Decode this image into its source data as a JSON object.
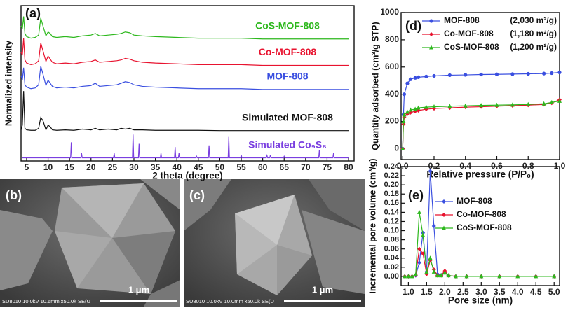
{
  "chart_data": [
    {
      "type": "line",
      "panel_label": "(a)",
      "xlabel": "2 theta (degree)",
      "ylabel": "Normalized intensity",
      "xlim": [
        3.7,
        81.3
      ],
      "ylim": [
        0,
        10
      ],
      "xticks": [
        5,
        10,
        15,
        20,
        25,
        30,
        35,
        40,
        45,
        50,
        55,
        60,
        65,
        70,
        75,
        80
      ],
      "series": [
        {
          "name": "CoS-MOF-808",
          "color": "#2db81d",
          "x": [
            3.7,
            4.0,
            4.3,
            4.6,
            5.0,
            6.0,
            7.0,
            7.8,
            8.3,
            8.8,
            9.5,
            10.0,
            10.5,
            11.0,
            12,
            14,
            16,
            18,
            20,
            21,
            22,
            24,
            26,
            27,
            28,
            29,
            30,
            32,
            35,
            40,
            45,
            50,
            55,
            60,
            65,
            70,
            75,
            80
          ],
          "values": [
            8.7,
            8.5,
            9.3,
            8.2,
            8.0,
            7.9,
            7.95,
            8.1,
            9.2,
            8.7,
            8.05,
            8.3,
            8.2,
            8.0,
            7.95,
            8.0,
            7.95,
            8.05,
            8.1,
            8.2,
            8.05,
            8.1,
            8.15,
            8.2,
            8.3,
            8.25,
            8.1,
            8.05,
            8.0,
            7.95,
            7.9,
            7.9,
            7.9,
            7.85,
            7.85,
            7.85,
            7.85,
            7.85
          ]
        },
        {
          "name": "Co-MOF-808",
          "color": "#e8132f",
          "x": [
            3.7,
            4.0,
            4.3,
            4.6,
            5.0,
            6.0,
            7.0,
            7.8,
            8.3,
            8.8,
            9.5,
            10.0,
            10.5,
            11.0,
            12,
            14,
            16,
            18,
            20,
            21,
            22,
            24,
            26,
            27,
            28,
            29,
            30,
            32,
            35,
            40,
            45,
            50,
            55,
            60,
            65,
            70,
            75,
            80
          ],
          "values": [
            7.0,
            6.8,
            7.9,
            6.5,
            6.3,
            6.2,
            6.25,
            6.45,
            7.6,
            7.1,
            6.4,
            6.75,
            6.55,
            6.35,
            6.25,
            6.3,
            6.25,
            6.35,
            6.4,
            6.5,
            6.35,
            6.4,
            6.45,
            6.5,
            6.6,
            6.55,
            6.45,
            6.35,
            6.3,
            6.25,
            6.2,
            6.2,
            6.2,
            6.15,
            6.15,
            6.15,
            6.15,
            6.15
          ]
        },
        {
          "name": "MOF-808",
          "color": "#3a4fe0",
          "x": [
            3.7,
            4.0,
            4.3,
            4.6,
            5.0,
            6.0,
            7.0,
            7.8,
            8.3,
            8.8,
            9.5,
            10.0,
            10.5,
            11.0,
            12,
            14,
            16,
            18,
            20,
            21,
            22,
            24,
            26,
            27,
            28,
            29,
            30,
            32,
            35,
            40,
            45,
            50,
            55,
            60,
            65,
            70,
            75,
            80
          ],
          "values": [
            5.5,
            5.2,
            6.0,
            4.9,
            4.75,
            4.65,
            4.7,
            4.9,
            6.1,
            5.6,
            4.85,
            5.2,
            5.0,
            4.8,
            4.7,
            4.75,
            4.7,
            4.8,
            4.85,
            5.0,
            4.8,
            4.85,
            4.9,
            5.0,
            5.1,
            5.05,
            4.9,
            4.8,
            4.75,
            4.7,
            4.65,
            4.65,
            4.65,
            4.6,
            4.6,
            4.6,
            4.6,
            4.6
          ]
        },
        {
          "name": "Simulated MOF-808",
          "color": "#111111",
          "x": [
            3.7,
            4.0,
            4.3,
            4.6,
            5.0,
            6.0,
            7.0,
            7.8,
            8.3,
            8.8,
            9.5,
            10.0,
            10.5,
            11.0,
            12,
            14,
            16,
            18,
            20,
            21,
            22,
            24,
            26,
            27,
            28,
            29,
            30,
            32,
            35,
            40,
            45,
            50,
            55,
            60,
            65,
            70,
            75,
            80
          ],
          "values": [
            2.0,
            2.3,
            4.5,
            2.1,
            2.0,
            1.97,
            1.97,
            2.1,
            2.8,
            2.6,
            2.0,
            2.3,
            2.2,
            2.0,
            1.97,
            2.0,
            1.97,
            2.05,
            2.0,
            2.1,
            2.0,
            2.05,
            2.0,
            2.1,
            2.05,
            2.1,
            2.0,
            2.0,
            1.97,
            1.97,
            1.97,
            1.95,
            1.95,
            1.95,
            1.95,
            1.95,
            1.95,
            1.95
          ]
        },
        {
          "name": "Simulated Co₉S₈",
          "color": "#7a3fe0",
          "x": [
            4,
            15.25,
            15.4,
            15.55,
            17.65,
            17.8,
            17.95,
            25.25,
            25.4,
            25.55,
            29.65,
            29.8,
            29.95,
            31.05,
            31.2,
            31.35,
            36.15,
            36.3,
            36.45,
            39.45,
            39.6,
            39.75,
            40.35,
            40.5,
            40.65,
            44.45,
            44.6,
            44.75,
            47.35,
            47.5,
            47.65,
            51.95,
            52.1,
            52.25,
            54.85,
            55.0,
            55.15,
            60.85,
            61.0,
            61.15,
            61.65,
            61.8,
            61.95,
            64.85,
            65.0,
            65.15,
            73.05,
            73.2,
            73.35,
            76.35,
            76.5,
            76.65,
            80
          ],
          "values": [
            0.2,
            0.2,
            1.2,
            0.2,
            0.2,
            0.5,
            0.2,
            0.2,
            0.5,
            0.2,
            0.2,
            1.7,
            0.2,
            0.2,
            1.1,
            0.2,
            0.2,
            0.5,
            0.2,
            0.2,
            0.9,
            0.2,
            0.2,
            0.5,
            0.2,
            0.2,
            0.3,
            0.2,
            0.2,
            1.0,
            0.2,
            0.2,
            1.55,
            0.2,
            0.2,
            0.4,
            0.2,
            0.2,
            0.35,
            0.2,
            0.2,
            0.4,
            0.2,
            0.2,
            0.3,
            0.2,
            0.2,
            0.7,
            0.2,
            0.2,
            0.5,
            0.2,
            0.2
          ]
        }
      ]
    },
    {
      "type": "line",
      "panel_label": "(d)",
      "xlabel": "Relative pressure (P/P₀)",
      "ylabel": "Quantity adsorbed (cm³/g STP)",
      "xlim": [
        -0.01,
        1.0
      ],
      "ylim": [
        -80,
        1000
      ],
      "xticks": [
        {
          "value": 0,
          "label": "0.0"
        },
        0.2,
        0.4,
        0.6,
        0.8,
        {
          "value": 1,
          "label": "1.0"
        }
      ],
      "yticks": [
        0,
        200,
        400,
        600,
        800,
        1000
      ],
      "legend": "upper right",
      "series": [
        {
          "name": "MOF-808",
          "note": "(2,030 m²/g)",
          "color": "#3a4fe0",
          "marker": "circle",
          "x": [
            0,
            0.005,
            0.01,
            0.03,
            0.05,
            0.08,
            0.1,
            0.15,
            0.2,
            0.3,
            0.4,
            0.5,
            0.6,
            0.7,
            0.8,
            0.9,
            0.95,
            1.0
          ],
          "values": [
            0,
            250,
            400,
            480,
            510,
            520,
            525,
            530,
            535,
            540,
            542,
            545,
            546,
            548,
            550,
            552,
            555,
            560
          ]
        },
        {
          "name": "Co-MOF-808",
          "note": "(1,180 m²/g)",
          "color": "#e8132f",
          "marker": "diamond",
          "x": [
            0,
            0.005,
            0.01,
            0.03,
            0.05,
            0.08,
            0.1,
            0.15,
            0.2,
            0.3,
            0.4,
            0.5,
            0.6,
            0.7,
            0.8,
            0.9,
            0.95,
            1.0
          ],
          "values": [
            0,
            180,
            230,
            255,
            265,
            275,
            280,
            290,
            295,
            300,
            305,
            308,
            312,
            316,
            320,
            325,
            335,
            360
          ]
        },
        {
          "name": "CoS-MOF-808",
          "note": "(1,200 m²/g)",
          "color": "#2db81d",
          "marker": "triangle",
          "x": [
            0,
            0.005,
            0.01,
            0.03,
            0.05,
            0.08,
            0.1,
            0.15,
            0.2,
            0.3,
            0.4,
            0.5,
            0.6,
            0.7,
            0.8,
            0.9,
            0.95,
            1.0
          ],
          "values": [
            0,
            200,
            250,
            270,
            285,
            290,
            300,
            305,
            308,
            312,
            315,
            318,
            320,
            322,
            325,
            330,
            340,
            350
          ]
        }
      ]
    },
    {
      "type": "line",
      "panel_label": "(e)",
      "xlabel": "Pore size (nm)",
      "ylabel": "Incremental pore volume (cm³/g)",
      "xlim": [
        0.8,
        5.15
      ],
      "ylim": [
        -0.02,
        0.24
      ],
      "xticks": [
        {
          "value": 1,
          "label": "1.0"
        },
        1.5,
        {
          "value": 2,
          "label": "2.0"
        },
        2.5,
        {
          "value": 3,
          "label": "3.0"
        },
        3.5,
        {
          "value": 4,
          "label": "4.0"
        },
        4.5,
        {
          "value": 5,
          "label": "5.0"
        }
      ],
      "yticks": [
        {
          "value": 0,
          "label": "0.00"
        },
        0.02,
        0.04,
        0.06,
        0.08,
        {
          "value": 0.1,
          "label": "0.10"
        },
        0.12,
        0.14,
        0.16,
        0.18,
        {
          "value": 0.2,
          "label": "0.20"
        },
        0.22,
        0.24
      ],
      "legend": "upper center",
      "series": [
        {
          "name": "MOF-808",
          "color": "#3a4fe0",
          "marker": "diamond",
          "x": [
            0.9,
            1.0,
            1.1,
            1.2,
            1.3,
            1.4,
            1.5,
            1.6,
            1.7,
            1.8,
            1.9,
            2.0,
            2.1,
            2.3,
            2.6,
            3.0,
            3.5,
            4.0,
            4.5,
            5.0
          ],
          "values": [
            0,
            0,
            0,
            0.002,
            0.03,
            0.095,
            0.01,
            0.23,
            0.11,
            0.005,
            0.003,
            0.008,
            0.002,
            0,
            0,
            0,
            0,
            0,
            0,
            0
          ]
        },
        {
          "name": "Co-MOF-808",
          "color": "#e8132f",
          "marker": "diamond",
          "x": [
            0.9,
            1.0,
            1.1,
            1.2,
            1.3,
            1.4,
            1.5,
            1.6,
            1.7,
            1.8,
            1.9,
            2.0,
            2.1,
            2.3,
            2.6,
            3.0,
            3.5,
            4.0,
            4.5,
            5.0
          ],
          "values": [
            0,
            0,
            0,
            0.003,
            0.06,
            0.05,
            0.005,
            0.035,
            0.015,
            0.002,
            0.002,
            0.012,
            0.002,
            0,
            0,
            0,
            0,
            0,
            0,
            0
          ]
        },
        {
          "name": "CoS-MOF-808",
          "color": "#2db81d",
          "marker": "triangle",
          "x": [
            0.9,
            1.0,
            1.1,
            1.2,
            1.3,
            1.4,
            1.5,
            1.6,
            1.7,
            1.8,
            1.9,
            2.0,
            2.1,
            2.3,
            2.6,
            3.0,
            3.5,
            4.0,
            4.5,
            5.0
          ],
          "values": [
            0,
            0,
            0,
            0.004,
            0.14,
            0.09,
            0.01,
            0.04,
            0.01,
            0.002,
            0.002,
            0.008,
            0.002,
            0,
            0,
            0,
            0,
            0,
            0,
            0
          ]
        }
      ]
    }
  ],
  "images": [
    {
      "panel_label": "(b)",
      "info": "SU8010 10.0kV 10.6mm x50.0k SE(U",
      "scale": "1 μm"
    },
    {
      "panel_label": "(c)",
      "info": "SU8010 10.0kV 10.0mm x50.0k SE(U",
      "scale": "1 μm"
    }
  ]
}
